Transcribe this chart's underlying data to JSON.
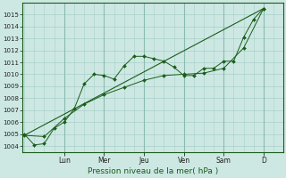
{
  "bg_color": "#cde8e3",
  "line_color": "#1a5c1a",
  "grid_color": "#a8cfc8",
  "x_day_labels": [
    "Lun",
    "Mer",
    "Jeu",
    "Ven",
    "Sam",
    "D"
  ],
  "x_day_positions": [
    2,
    4,
    6,
    8,
    10,
    12
  ],
  "xlabel": "Pression niveau de la mer( hPa )",
  "ylim": [
    1003.5,
    1016.0
  ],
  "yticks": [
    1004,
    1005,
    1006,
    1007,
    1008,
    1009,
    1010,
    1011,
    1012,
    1013,
    1014,
    1015
  ],
  "xlim": [
    -0.1,
    13.0
  ],
  "series1_x": [
    0,
    0.5,
    1.0,
    1.5,
    2.0,
    2.5,
    3.0,
    3.5,
    4.0,
    4.5,
    5.0,
    5.5,
    6.0,
    6.5,
    7.0,
    7.5,
    8.0,
    8.5,
    9.0,
    9.5,
    10.0,
    10.5,
    11.0,
    11.5,
    12.0
  ],
  "series1_y": [
    1005.0,
    1004.1,
    1004.2,
    1005.5,
    1006.0,
    1007.1,
    1009.2,
    1010.0,
    1009.9,
    1009.6,
    1010.7,
    1011.5,
    1011.5,
    1011.3,
    1011.1,
    1010.6,
    1009.9,
    1009.9,
    1010.5,
    1010.5,
    1011.1,
    1011.1,
    1013.1,
    1014.6,
    1015.5
  ],
  "series2_x": [
    0,
    12.0
  ],
  "series2_y": [
    1004.9,
    1015.5
  ],
  "series3_x": [
    0,
    1.0,
    2.0,
    3.0,
    4.0,
    5.0,
    6.0,
    7.0,
    8.0,
    9.0,
    10.0,
    11.0,
    12.0
  ],
  "series3_y": [
    1004.9,
    1004.8,
    1006.3,
    1007.5,
    1008.3,
    1008.9,
    1009.5,
    1009.9,
    1010.0,
    1010.1,
    1010.5,
    1012.2,
    1015.5
  ]
}
